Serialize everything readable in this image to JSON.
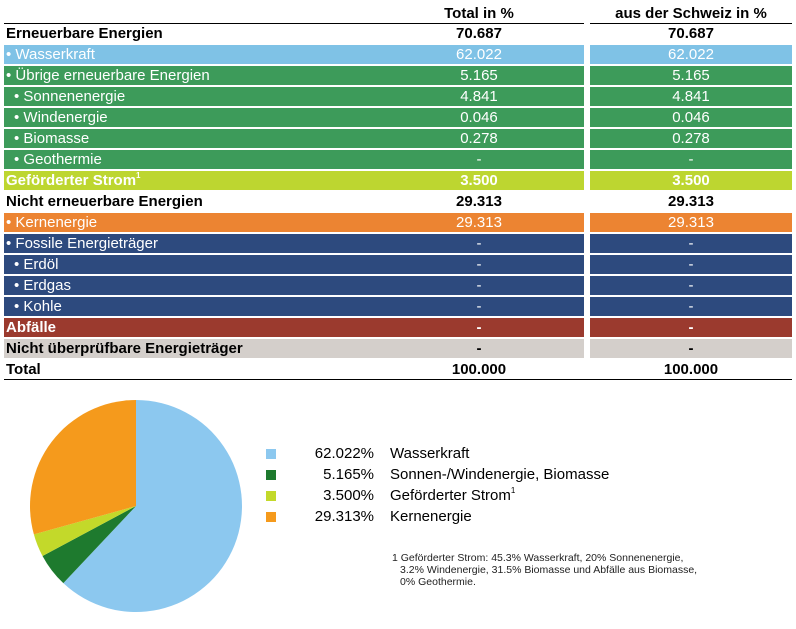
{
  "table": {
    "headers": [
      "",
      "Total in %",
      "aus der Schweiz in %"
    ],
    "rows": [
      {
        "label": "Erneuerbare Energien",
        "total": "70.687",
        "ch": "70.687",
        "bg": "#ffffff",
        "fg": "#000000",
        "bold": true,
        "indent": false,
        "sup": ""
      },
      {
        "label": "• Wasserkraft",
        "total": "62.022",
        "ch": "62.022",
        "bg": "#7fc2e6",
        "fg": "#ffffff",
        "bold": false,
        "indent": false,
        "sup": ""
      },
      {
        "label": "• Übrige erneuerbare Energien",
        "total": "5.165",
        "ch": "5.165",
        "bg": "#3d9b5a",
        "fg": "#ffffff",
        "bold": false,
        "indent": false,
        "sup": ""
      },
      {
        "label": "• Sonnenenergie",
        "total": "4.841",
        "ch": "4.841",
        "bg": "#3d9b5a",
        "fg": "#ffffff",
        "bold": false,
        "indent": true,
        "sup": ""
      },
      {
        "label": "• Windenergie",
        "total": "0.046",
        "ch": "0.046",
        "bg": "#3d9b5a",
        "fg": "#ffffff",
        "bold": false,
        "indent": true,
        "sup": ""
      },
      {
        "label": "• Biomasse",
        "total": "0.278",
        "ch": "0.278",
        "bg": "#3d9b5a",
        "fg": "#ffffff",
        "bold": false,
        "indent": true,
        "sup": ""
      },
      {
        "label": "• Geothermie",
        "total": "-",
        "ch": "-",
        "bg": "#3d9b5a",
        "fg": "#ffffff",
        "bold": false,
        "indent": true,
        "sup": ""
      },
      {
        "label": "Geförderter Strom",
        "total": "3.500",
        "ch": "3.500",
        "bg": "#bdd630",
        "fg": "#ffffff",
        "bold": true,
        "indent": false,
        "sup": "1"
      },
      {
        "label": "Nicht erneuerbare Energien",
        "total": "29.313",
        "ch": "29.313",
        "bg": "#ffffff",
        "fg": "#000000",
        "bold": true,
        "indent": false,
        "sup": ""
      },
      {
        "label": "• Kernenergie",
        "total": "29.313",
        "ch": "29.313",
        "bg": "#ec8432",
        "fg": "#ffffff",
        "bold": false,
        "indent": false,
        "sup": ""
      },
      {
        "label": "• Fossile Energieträger",
        "total": "-",
        "ch": "-",
        "bg": "#2d4a7e",
        "fg": "#ffffff",
        "bold": false,
        "indent": false,
        "sup": ""
      },
      {
        "label": "• Erdöl",
        "total": "-",
        "ch": "-",
        "bg": "#2d4a7e",
        "fg": "#ffffff",
        "bold": false,
        "indent": true,
        "sup": ""
      },
      {
        "label": "• Erdgas",
        "total": "-",
        "ch": "-",
        "bg": "#2d4a7e",
        "fg": "#ffffff",
        "bold": false,
        "indent": true,
        "sup": ""
      },
      {
        "label": "• Kohle",
        "total": "-",
        "ch": "-",
        "bg": "#2d4a7e",
        "fg": "#ffffff",
        "bold": false,
        "indent": true,
        "sup": ""
      },
      {
        "label": "Abfälle",
        "total": "-",
        "ch": "-",
        "bg": "#9b3a2e",
        "fg": "#ffffff",
        "bold": true,
        "indent": false,
        "sup": ""
      },
      {
        "label": "Nicht überprüfbare Energieträger",
        "total": "-",
        "ch": "-",
        "bg": "#d4cfcb",
        "fg": "#000000",
        "bold": true,
        "indent": false,
        "sup": ""
      },
      {
        "label": "Total",
        "total": "100.000",
        "ch": "100.000",
        "bg": "#ffffff",
        "fg": "#000000",
        "bold": true,
        "indent": false,
        "sup": ""
      }
    ]
  },
  "chart_data": {
    "type": "pie",
    "series": [
      {
        "pct": "62.022%",
        "label": "Wasserkraft",
        "sup": "",
        "value": 62.022,
        "color": "#8cc8ef"
      },
      {
        "pct": "5.165%",
        "label": "Sonnen-/Windenergie, Biomasse",
        "sup": "",
        "value": 5.165,
        "color": "#1e7a2e"
      },
      {
        "pct": "3.500%",
        "label": "Geförderter Strom",
        "sup": "1",
        "value": 3.5,
        "color": "#c3d92a"
      },
      {
        "pct": "29.313%",
        "label": "Kernenergie",
        "sup": "",
        "value": 29.313,
        "color": "#f59a1c"
      }
    ],
    "start": "12 o'clock",
    "direction": "clockwise"
  },
  "footnote": {
    "lines": [
      "1 Geförderter Strom: 45.3% Wasserkraft, 20% Sonnenenergie,",
      "3.2% Windenergie, 31.5% Biomasse und Abfälle aus Biomasse,",
      "0% Geothermie."
    ]
  }
}
